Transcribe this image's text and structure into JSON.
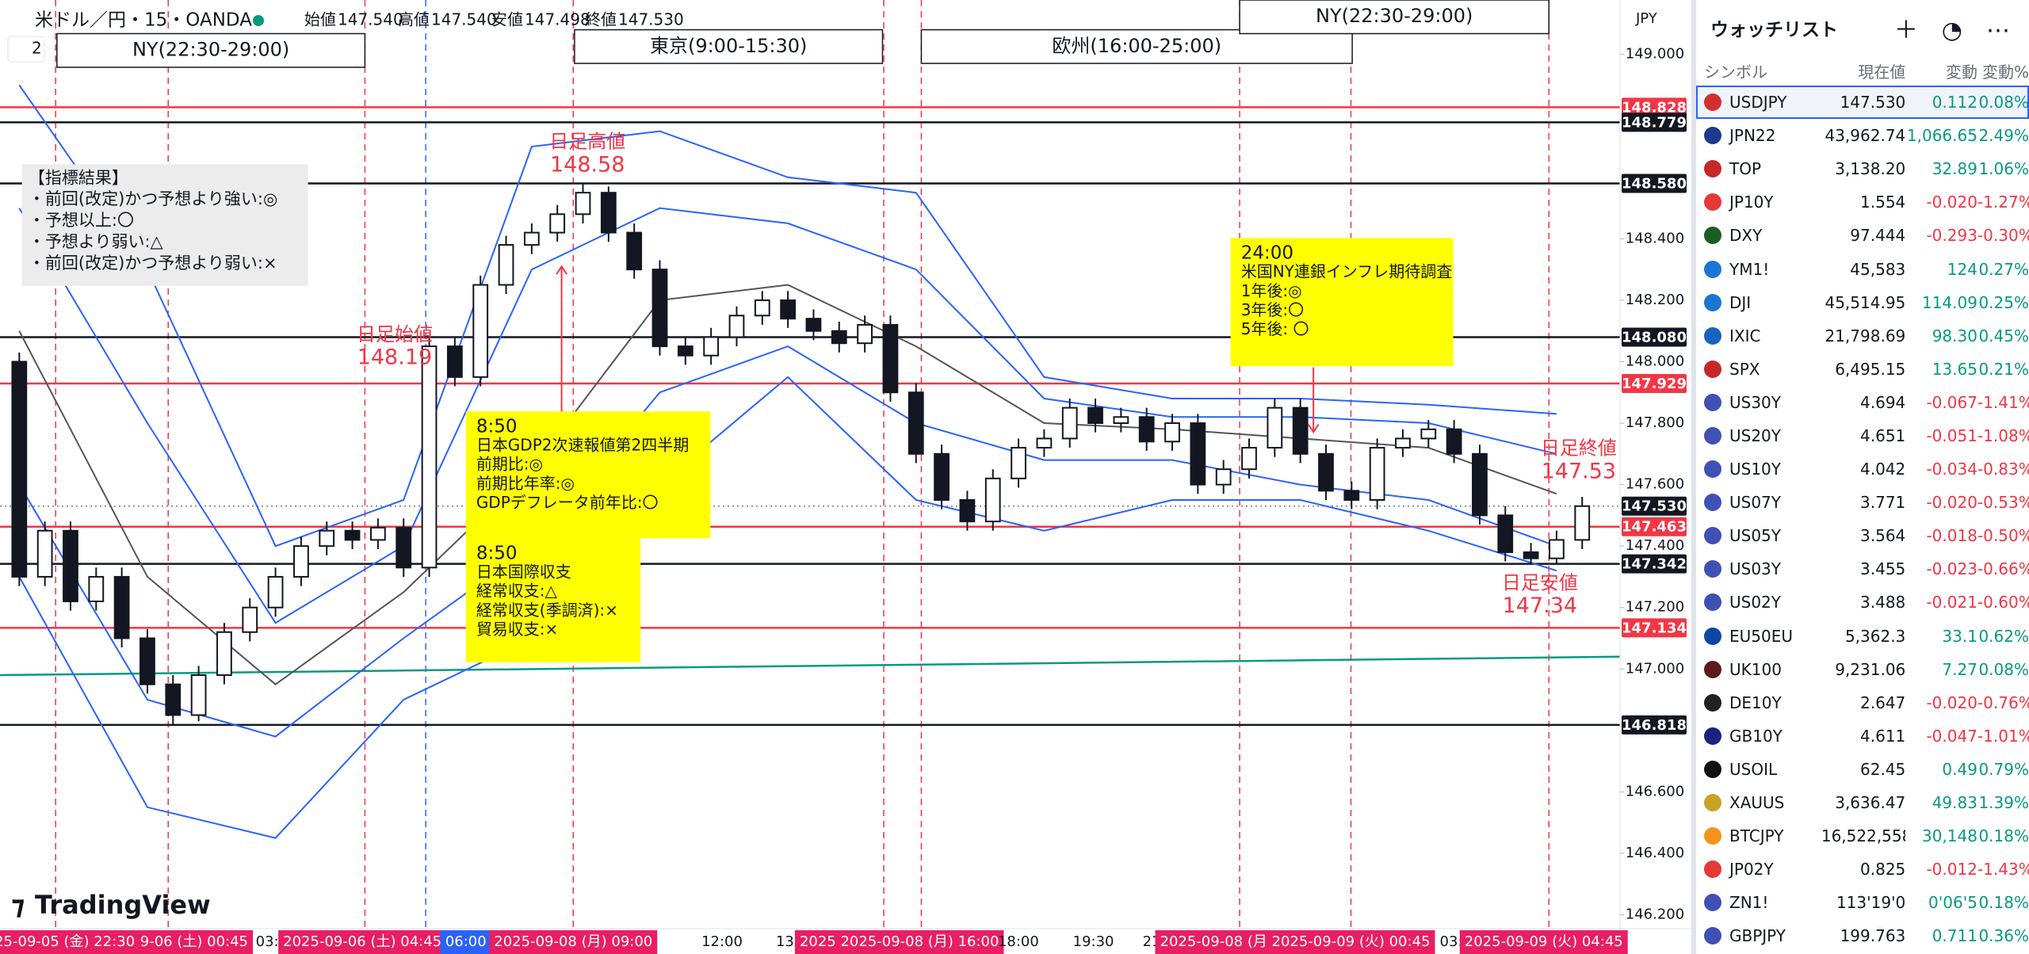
{
  "header": {
    "symbol": "米ドル／円・15・OANDA",
    "ohlc": [
      [
        "始値",
        "147.540"
      ],
      [
        "高値",
        "147.540"
      ],
      [
        "安値",
        "147.498"
      ],
      [
        "終値",
        "147.530"
      ]
    ],
    "collapse": "2",
    "currency": "JPY",
    "logo": "TradingView"
  },
  "sessions": [
    "NY(22:30-29:00)",
    "東京(9:00-15:30)",
    "欧州(16:00-25:00)",
    "NY(22:30-29:00)"
  ],
  "chart": {
    "ylim": [
      146.155,
      149.177
    ],
    "yticks": [
      {
        "value": 149,
        "label": "149.000"
      },
      {
        "value": 148.4,
        "label": "148.400"
      },
      {
        "value": 148.2,
        "label": "148.200"
      },
      {
        "value": 148,
        "label": "148.000"
      },
      {
        "value": 147.8,
        "label": "147.800"
      },
      {
        "value": 147.6,
        "label": "147.600"
      },
      {
        "value": 147.4,
        "label": "147.400"
      },
      {
        "value": 147.2,
        "label": "147.200"
      },
      {
        "value": 147,
        "label": "147.000"
      },
      {
        "value": 146.6,
        "label": "146.600"
      },
      {
        "value": 146.4,
        "label": "146.400"
      },
      {
        "value": 146.2,
        "label": "146.200"
      }
    ],
    "levels": [
      {
        "value": 148.828,
        "label": "148.828"
      },
      {
        "value": 148.779,
        "label": "148.779"
      },
      {
        "value": 148.58,
        "label": "148.580"
      },
      {
        "value": 148.08,
        "label": "148.080"
      },
      {
        "value": 147.929,
        "label": "147.929"
      },
      {
        "value": 147.463,
        "label": "147.463"
      },
      {
        "value": 147.342,
        "label": "147.342"
      },
      {
        "value": 147.134,
        "label": "147.134"
      },
      {
        "value": 146.818,
        "label": "146.818"
      }
    ],
    "level_colors": [
      "#f23645",
      "#131722",
      "#131722",
      "#131722",
      "#f23645",
      "#f23645",
      "#131722",
      "#f23645",
      "#131722"
    ],
    "current": {
      "value": 147.53,
      "label": "147.530"
    },
    "trend_line": [
      146.98,
      147.04
    ],
    "ohlc": [
      [
        148.0,
        148.03,
        147.27,
        147.3
      ],
      [
        147.3,
        147.48,
        147.27,
        147.45
      ],
      [
        147.45,
        147.48,
        147.19,
        147.22
      ],
      [
        147.22,
        147.33,
        147.19,
        147.3
      ],
      [
        147.3,
        147.33,
        147.07,
        147.1
      ],
      [
        147.1,
        147.13,
        146.92,
        146.95
      ],
      [
        146.95,
        146.98,
        146.82,
        146.85
      ],
      [
        146.85,
        147.01,
        146.83,
        146.98
      ],
      [
        146.98,
        147.15,
        146.95,
        147.12
      ],
      [
        147.12,
        147.23,
        147.09,
        147.2
      ],
      [
        147.2,
        147.33,
        147.17,
        147.3
      ],
      [
        147.3,
        147.43,
        147.27,
        147.4
      ],
      [
        147.4,
        147.48,
        147.37,
        147.45
      ],
      [
        147.45,
        147.48,
        147.39,
        147.42
      ],
      [
        147.42,
        147.49,
        147.39,
        147.46
      ],
      [
        147.46,
        147.49,
        147.3,
        147.33
      ],
      [
        147.33,
        148.08,
        147.3,
        148.05
      ],
      [
        148.05,
        148.08,
        147.92,
        147.95
      ],
      [
        147.95,
        148.28,
        147.92,
        148.25
      ],
      [
        148.25,
        148.41,
        148.22,
        148.38
      ],
      [
        148.38,
        148.45,
        148.35,
        148.42
      ],
      [
        148.42,
        148.51,
        148.39,
        148.48
      ],
      [
        148.48,
        148.58,
        148.45,
        148.55
      ],
      [
        148.55,
        148.57,
        148.39,
        148.42
      ],
      [
        148.42,
        148.45,
        148.27,
        148.3
      ],
      [
        148.3,
        148.33,
        148.02,
        148.05
      ],
      [
        148.05,
        148.08,
        147.99,
        148.02
      ],
      [
        148.02,
        148.11,
        147.99,
        148.08
      ],
      [
        148.08,
        148.18,
        148.05,
        148.15
      ],
      [
        148.15,
        148.23,
        148.12,
        148.2
      ],
      [
        148.2,
        148.23,
        148.11,
        148.14
      ],
      [
        148.14,
        148.17,
        148.07,
        148.1
      ],
      [
        148.1,
        148.13,
        148.03,
        148.06
      ],
      [
        148.06,
        148.15,
        148.03,
        148.12
      ],
      [
        148.12,
        148.15,
        147.87,
        147.9
      ],
      [
        147.9,
        147.93,
        147.67,
        147.7
      ],
      [
        147.7,
        147.73,
        147.52,
        147.55
      ],
      [
        147.55,
        147.58,
        147.45,
        147.48
      ],
      [
        147.48,
        147.65,
        147.45,
        147.62
      ],
      [
        147.62,
        147.75,
        147.59,
        147.72
      ],
      [
        147.72,
        147.78,
        147.69,
        147.75
      ],
      [
        147.75,
        147.88,
        147.72,
        147.85
      ],
      [
        147.85,
        147.88,
        147.77,
        147.8
      ],
      [
        147.8,
        147.85,
        147.77,
        147.82
      ],
      [
        147.82,
        147.85,
        147.71,
        147.74
      ],
      [
        147.74,
        147.83,
        147.71,
        147.8
      ],
      [
        147.8,
        147.83,
        147.57,
        147.6
      ],
      [
        147.6,
        147.68,
        147.57,
        147.65
      ],
      [
        147.65,
        147.75,
        147.62,
        147.72
      ],
      [
        147.72,
        147.88,
        147.69,
        147.85
      ],
      [
        147.85,
        147.88,
        147.67,
        147.7
      ],
      [
        147.7,
        147.73,
        147.55,
        147.58
      ],
      [
        147.58,
        147.61,
        147.52,
        147.55
      ],
      [
        147.55,
        147.75,
        147.52,
        147.72
      ],
      [
        147.72,
        147.78,
        147.69,
        147.75
      ],
      [
        147.75,
        147.81,
        147.72,
        147.78
      ],
      [
        147.78,
        147.81,
        147.67,
        147.7
      ],
      [
        147.7,
        147.73,
        147.47,
        147.5
      ],
      [
        147.5,
        147.53,
        147.35,
        147.38
      ],
      [
        147.38,
        147.41,
        147.34,
        147.36
      ],
      [
        147.36,
        147.45,
        147.34,
        147.42
      ],
      [
        147.42,
        147.56,
        147.39,
        147.53
      ]
    ],
    "band_lines": [
      {
        "color": "#2962ff",
        "values": [
          148.9,
          148.3,
          147.4,
          147.55,
          148.7,
          148.75,
          148.6,
          148.55,
          147.95,
          147.88,
          147.88,
          147.86,
          147.83
        ]
      },
      {
        "color": "#2962ff",
        "values": [
          148.5,
          147.8,
          147.15,
          147.4,
          148.3,
          148.5,
          148.45,
          148.3,
          147.88,
          147.82,
          147.82,
          147.8,
          147.7
        ]
      },
      {
        "color": "#555555",
        "values": [
          148.1,
          147.3,
          146.95,
          147.25,
          147.65,
          148.2,
          148.25,
          148.05,
          147.8,
          147.78,
          147.75,
          147.72,
          147.57
        ]
      },
      {
        "color": "#2962ff",
        "values": [
          147.6,
          146.9,
          146.78,
          147.1,
          147.4,
          147.9,
          148.05,
          147.8,
          147.68,
          147.68,
          147.6,
          147.55,
          147.4
        ]
      },
      {
        "color": "#2962ff",
        "values": [
          147.3,
          146.55,
          146.45,
          146.9,
          147.1,
          147.6,
          147.95,
          147.55,
          147.45,
          147.55,
          147.55,
          147.45,
          147.32
        ]
      }
    ]
  },
  "indicator_box": [
    "【指標結果】",
    "・前回(改定)かつ予想より強い:◎",
    "・予想以上:〇",
    "・予想より弱い:△",
    "・前回(改定)かつ予想より弱い:×"
  ],
  "notes": [
    [
      "8:50",
      "日本GDP2次速報値第2四半期",
      "前期比:◎",
      "前期比年率:◎",
      "GDPデフレータ前年比:〇"
    ],
    [
      "8:50",
      "日本国際収支",
      "経常収支:△",
      "経常収支(季調済):×",
      "貿易収支:×"
    ],
    [
      "24:00",
      "米国NY連銀インフレ期待調査",
      "1年後:◎",
      "3年後:〇",
      "5年後: 〇"
    ]
  ],
  "daily_labels": [
    [
      "日足高値",
      "148.58"
    ],
    [
      "日足始値",
      "148.19"
    ],
    [
      "日足終値",
      "147.53"
    ],
    [
      "日足安値",
      "147.34"
    ]
  ],
  "time_axis": [
    "25-09-05 (金)  22:30",
    "9-06 (土)  00:45",
    "03:0",
    "2025-09-06 (土)  04:45",
    "06:00",
    "2025-09-08 (月)  09:00",
    "12:00",
    "13:3",
    "2025  2025-09-08 (月)  16:00",
    "18:00",
    "19:30",
    "21",
    "2025-09-08 (月)",
    "2025-09-09 (火)  00:45",
    "03:0",
    "2025-09-09 (火)  04:45"
  ],
  "watchlist": {
    "title": "ウォッチリスト",
    "columns": [
      "シンボル",
      "現在値",
      "変動",
      "変動%"
    ],
    "rows": [
      [
        "USDJPY",
        "147.530",
        "0.112",
        "0.08%"
      ],
      [
        "JPN22",
        "43,962.74",
        "1,066.65",
        "2.49%"
      ],
      [
        "TOP",
        "3,138.20",
        "32.89",
        "1.06%"
      ],
      [
        "JP10Y",
        "1.554",
        "-0.020",
        "-1.27%"
      ],
      [
        "DXY",
        "97.444",
        "-0.293",
        "-0.30%"
      ],
      [
        "YM1!",
        "45,583",
        "124",
        "0.27%"
      ],
      [
        "DJI",
        "45,514.95",
        "114.09",
        "0.25%"
      ],
      [
        "IXIC",
        "21,798.69",
        "98.30",
        "0.45%"
      ],
      [
        "SPX",
        "6,495.15",
        "13.65",
        "0.21%"
      ],
      [
        "US30Y",
        "4.694",
        "-0.067",
        "-1.41%"
      ],
      [
        "US20Y",
        "4.651",
        "-0.051",
        "-1.08%"
      ],
      [
        "US10Y",
        "4.042",
        "-0.034",
        "-0.83%"
      ],
      [
        "US07Y",
        "3.771",
        "-0.020",
        "-0.53%"
      ],
      [
        "US05Y",
        "3.564",
        "-0.018",
        "-0.50%"
      ],
      [
        "US03Y",
        "3.455",
        "-0.023",
        "-0.66%"
      ],
      [
        "US02Y",
        "3.488",
        "-0.021",
        "-0.60%"
      ],
      [
        "EU50EU",
        "5,362.3",
        "33.1",
        "0.62%"
      ],
      [
        "UK100",
        "9,231.06",
        "7.27",
        "0.08%"
      ],
      [
        "DE10Y",
        "2.647",
        "-0.020",
        "-0.76%"
      ],
      [
        "GB10Y",
        "4.611",
        "-0.047",
        "-1.01%"
      ],
      [
        "USOIL",
        "62.45",
        "0.49",
        "0.79%"
      ],
      [
        "XAUUS",
        "3,636.47",
        "49.83",
        "1.39%"
      ],
      [
        "BTCJPY",
        "16,522,558",
        "30,148",
        "0.18%"
      ],
      [
        "JP02Y",
        "0.825",
        "-0.012",
        "-1.43%"
      ],
      [
        "ZN1!",
        "113'19'0",
        "0'06'5",
        "0.18%"
      ],
      [
        "GBPJPY",
        "199.763",
        "0.711",
        "0.36%"
      ]
    ],
    "icon_colors": [
      "#d32f2f",
      "#1e3a8a",
      "#c62828",
      "#e53935",
      "#1b5e20",
      "#1976d2",
      "#1976d2",
      "#1565c0",
      "#c62828",
      "#3f51b5",
      "#3f51b5",
      "#3f51b5",
      "#3f51b5",
      "#3f51b5",
      "#3f51b5",
      "#3f51b5",
      "#0d47a1",
      "#5d1a1a",
      "#212121",
      "#1a237e",
      "#111111",
      "#c9a227",
      "#f7931a",
      "#e53935",
      "#3f51b5",
      "#3f51b5"
    ]
  }
}
